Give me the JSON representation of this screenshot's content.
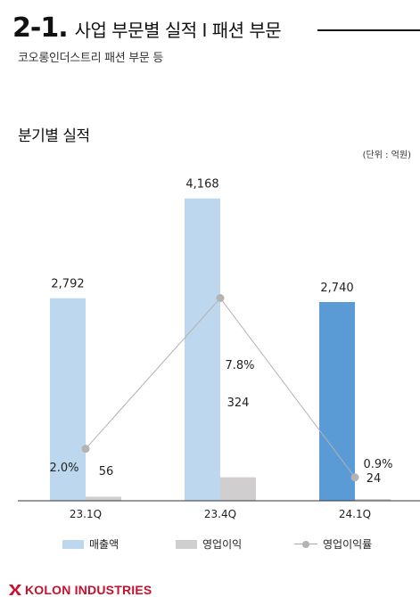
{
  "header": {
    "section_number": "2-1.",
    "section_title": "사업 부문별 실적 I 패션 부문",
    "subtitle": "코오롱인더스트리 패션 부문 등"
  },
  "chart_title": "분기별 실적",
  "unit_label": "(단위 : 억원)",
  "brand": {
    "logo_text": "KOLON INDUSTRIES",
    "color": "#c8102e"
  },
  "chart_data": {
    "type": "bar",
    "categories": [
      "23.1Q",
      "23.4Q",
      "24.1Q"
    ],
    "series": [
      {
        "name": "매출액",
        "kind": "bar",
        "values": [
          2792,
          4168,
          2740
        ],
        "labels": [
          "2,792",
          "4,168",
          "2,740"
        ],
        "colors": [
          "#bdd7ee",
          "#bdd7ee",
          "#5b9bd5"
        ]
      },
      {
        "name": "영업이익",
        "kind": "bar",
        "values": [
          56,
          324,
          24
        ],
        "labels": [
          "56",
          "324",
          "24"
        ],
        "colors": [
          "#d0cece",
          "#d0cece",
          "#d0cece"
        ]
      },
      {
        "name": "영업이익률",
        "kind": "line",
        "values": [
          2.0,
          7.8,
          0.9
        ],
        "labels": [
          "2.0%",
          "7.8%",
          "0.9%"
        ],
        "color": "#b3b3b3"
      }
    ],
    "ylim": [
      0,
      4300
    ],
    "ylim_rate": [
      0,
      12
    ],
    "grid": false,
    "legend_position": "bottom"
  }
}
